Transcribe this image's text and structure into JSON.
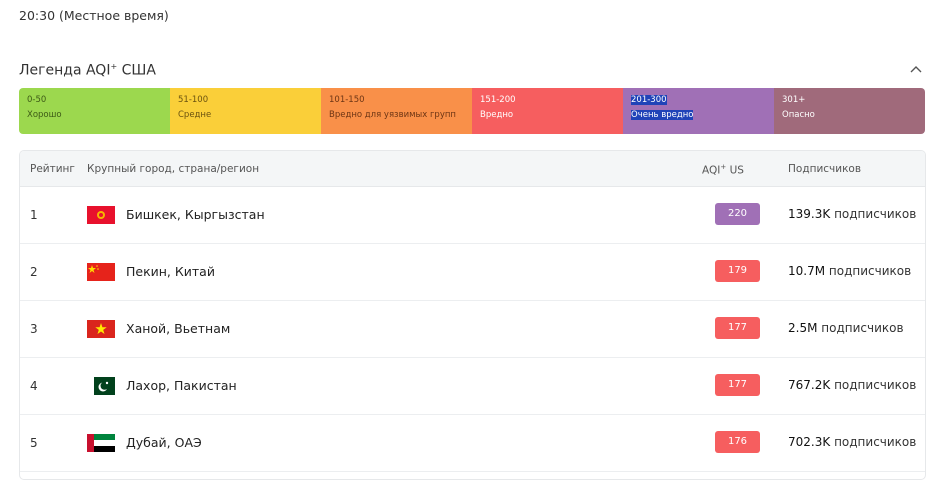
{
  "local_time": "20:30 (Местное время)",
  "legend": {
    "title": "Легенда AQI",
    "title_sup": "+",
    "title_suffix": " США",
    "segments": [
      {
        "range": "0-50",
        "label": "Хорошо",
        "color": "#9cd84e",
        "text": "#3d5a16"
      },
      {
        "range": "51-100",
        "label": "Средне",
        "color": "#facf39",
        "text": "#6b5310"
      },
      {
        "range": "101-150",
        "label": "Вредно для уязвимых групп",
        "color": "#f99049",
        "text": "#6d3514"
      },
      {
        "range": "151-200",
        "label": "Вредно",
        "color": "#f65e5f",
        "text": "#ffffff"
      },
      {
        "range": "201-300",
        "label": "Очень вредно",
        "color": "#a070b6",
        "text": "#ffffff"
      },
      {
        "range": "301+",
        "label": "Опасно",
        "color": "#a06a7b",
        "text": "#ffffff"
      }
    ]
  },
  "table": {
    "headers": {
      "rank": "Рейтинг",
      "city": "Крупный город, страна/регион",
      "aqi": "AQI",
      "aqi_sup": "+",
      "aqi_suffix": " US",
      "subs": "Подписчиков"
    },
    "rows": [
      {
        "rank": "1",
        "flag": "kyrgyzstan",
        "city": "Бишкек, Кыргызстан",
        "aqi": "220",
        "aqi_color": "#a070b6",
        "subs_num": "139.3K",
        "subs_label": "подписчиков"
      },
      {
        "rank": "2",
        "flag": "china",
        "city": "Пекин, Китай",
        "aqi": "179",
        "aqi_color": "#f65e5f",
        "subs_num": "10.7M",
        "subs_label": "подписчиков"
      },
      {
        "rank": "3",
        "flag": "vietnam",
        "city": "Ханой, Вьетнам",
        "aqi": "177",
        "aqi_color": "#f65e5f",
        "subs_num": "2.5M",
        "subs_label": "подписчиков"
      },
      {
        "rank": "4",
        "flag": "pakistan",
        "city": "Лахор, Пакистан",
        "aqi": "177",
        "aqi_color": "#f65e5f",
        "subs_num": "767.2K",
        "subs_label": "подписчиков"
      },
      {
        "rank": "5",
        "flag": "uae",
        "city": "Дубай, ОАЭ",
        "aqi": "176",
        "aqi_color": "#f65e5f",
        "subs_num": "702.3K",
        "subs_label": "подписчиков"
      }
    ]
  }
}
